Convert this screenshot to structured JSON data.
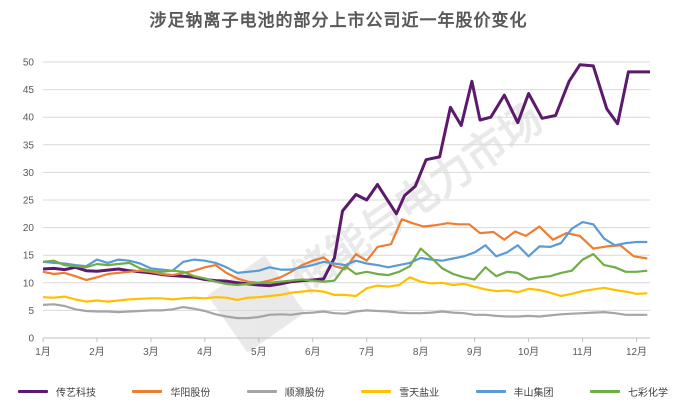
{
  "title": "涉足钠离子电池的部分上市公司近一年股价变化",
  "watermark_text": "储能与电力市场",
  "chart_data": {
    "type": "line",
    "title": "涉足钠离子电池的部分上市公司近一年股价变化",
    "xlabel": "",
    "ylabel": "",
    "ylim": [
      0,
      50
    ],
    "yticks": [
      0,
      5,
      10,
      15,
      20,
      25,
      30,
      35,
      40,
      45,
      50
    ],
    "x_tick_labels": [
      "1月",
      "2月",
      "3月",
      "4月",
      "5月",
      "6月",
      "7月",
      "8月",
      "9月",
      "10月",
      "11月",
      "12月"
    ],
    "x_range": [
      1,
      12.25
    ],
    "grid": true,
    "legend_position": "bottom",
    "series": [
      {
        "name": "传艺科技",
        "color": "#5b1a6b",
        "x": [
          1,
          1.2,
          1.4,
          1.6,
          1.8,
          2,
          2.2,
          2.4,
          2.6,
          2.8,
          3,
          3.2,
          3.4,
          3.6,
          3.8,
          4,
          4.2,
          4.4,
          4.6,
          4.8,
          5,
          5.2,
          5.4,
          5.6,
          5.8,
          6,
          6.2,
          6.4,
          6.55,
          6.8,
          7,
          7.2,
          7.35,
          7.55,
          7.7,
          7.9,
          8.1,
          8.35,
          8.55,
          8.75,
          8.95,
          9.1,
          9.3,
          9.55,
          9.8,
          10,
          10.25,
          10.5,
          10.75,
          10.95,
          11.2,
          11.45,
          11.65,
          11.85,
          12.05,
          12.25
        ],
        "y": [
          12.5,
          12.6,
          12.4,
          12.8,
          12.2,
          12.1,
          12.3,
          12.5,
          12.2,
          12.0,
          11.8,
          11.5,
          11.3,
          11.2,
          11.0,
          10.6,
          10.4,
          10.3,
          10.0,
          9.8,
          9.6,
          9.5,
          9.8,
          10.2,
          10.4,
          10.5,
          10.7,
          14.5,
          23.0,
          26.0,
          25.0,
          27.8,
          25.5,
          22.5,
          25.8,
          27.5,
          32.3,
          32.8,
          41.8,
          38.5,
          46.5,
          39.5,
          40.0,
          44.0,
          39.0,
          44.3,
          39.8,
          40.3,
          46.5,
          49.5,
          49.3,
          41.5,
          38.8,
          48.2,
          48.2,
          48.2
        ]
      },
      {
        "name": "华阳股份",
        "color": "#ed7d31",
        "x": [
          1,
          1.2,
          1.4,
          1.6,
          1.8,
          2,
          2.2,
          2.4,
          2.6,
          2.8,
          3,
          3.2,
          3.4,
          3.6,
          3.8,
          4,
          4.2,
          4.4,
          4.6,
          4.8,
          5,
          5.2,
          5.4,
          5.6,
          5.8,
          6,
          6.2,
          6.4,
          6.6,
          6.8,
          7,
          7.2,
          7.45,
          7.65,
          7.85,
          8.05,
          8.25,
          8.5,
          8.7,
          8.9,
          9.1,
          9.35,
          9.55,
          9.75,
          9.95,
          10.2,
          10.45,
          10.7,
          10.95,
          11.2,
          11.45,
          11.7,
          11.95,
          12.2
        ],
        "y": [
          12.0,
          11.6,
          11.8,
          11.2,
          10.5,
          11.0,
          11.6,
          11.8,
          12.0,
          12.2,
          12.0,
          11.6,
          11.4,
          11.8,
          12.2,
          12.8,
          13.2,
          11.8,
          10.8,
          10.2,
          10.0,
          10.4,
          11.0,
          12.0,
          13.2,
          14.0,
          14.6,
          13.0,
          12.5,
          15.2,
          14.0,
          16.5,
          17.0,
          21.5,
          20.8,
          20.2,
          20.4,
          20.8,
          20.6,
          20.6,
          19.0,
          19.2,
          17.8,
          19.3,
          18.5,
          20.2,
          17.8,
          19.0,
          18.5,
          16.2,
          16.6,
          16.8,
          14.8,
          14.4
        ]
      },
      {
        "name": "顺灏股份",
        "color": "#a5a5a5",
        "x": [
          1,
          1.2,
          1.4,
          1.6,
          1.8,
          2,
          2.2,
          2.4,
          2.6,
          2.8,
          3,
          3.2,
          3.4,
          3.6,
          3.8,
          4,
          4.2,
          4.4,
          4.6,
          4.8,
          5,
          5.2,
          5.4,
          5.6,
          5.8,
          6,
          6.2,
          6.4,
          6.6,
          6.8,
          7,
          7.2,
          7.4,
          7.6,
          7.8,
          8,
          8.2,
          8.4,
          8.6,
          8.8,
          9,
          9.2,
          9.4,
          9.6,
          9.8,
          10,
          10.2,
          10.4,
          10.6,
          10.8,
          11,
          11.2,
          11.4,
          11.6,
          11.8,
          12,
          12.2
        ],
        "y": [
          6.0,
          6.1,
          5.8,
          5.2,
          4.9,
          4.8,
          4.8,
          4.7,
          4.8,
          4.9,
          5.0,
          5.0,
          5.2,
          5.6,
          5.3,
          4.9,
          4.3,
          3.9,
          3.6,
          3.6,
          3.8,
          4.2,
          4.3,
          4.2,
          4.5,
          4.6,
          4.8,
          4.5,
          4.4,
          4.8,
          5.0,
          4.9,
          4.8,
          4.6,
          4.5,
          4.5,
          4.6,
          4.8,
          4.6,
          4.5,
          4.2,
          4.2,
          4.0,
          3.9,
          3.9,
          4.0,
          3.9,
          4.1,
          4.3,
          4.4,
          4.5,
          4.6,
          4.7,
          4.5,
          4.2,
          4.2,
          4.2
        ]
      },
      {
        "name": "雪天盐业",
        "color": "#ffc000",
        "x": [
          1,
          1.2,
          1.4,
          1.6,
          1.8,
          2,
          2.2,
          2.4,
          2.6,
          2.8,
          3,
          3.2,
          3.4,
          3.6,
          3.8,
          4,
          4.2,
          4.4,
          4.6,
          4.8,
          5,
          5.2,
          5.4,
          5.6,
          5.8,
          6,
          6.2,
          6.4,
          6.6,
          6.8,
          7,
          7.2,
          7.4,
          7.6,
          7.8,
          8,
          8.2,
          8.4,
          8.6,
          8.8,
          9,
          9.2,
          9.4,
          9.6,
          9.8,
          10,
          10.2,
          10.4,
          10.6,
          10.8,
          11,
          11.2,
          11.4,
          11.6,
          11.8,
          12,
          12.2
        ],
        "y": [
          7.4,
          7.3,
          7.5,
          7.0,
          6.6,
          6.8,
          6.6,
          6.8,
          7.0,
          7.1,
          7.2,
          7.2,
          7.0,
          7.2,
          7.3,
          7.2,
          7.4,
          7.3,
          6.9,
          7.3,
          7.4,
          7.6,
          7.8,
          8.2,
          8.4,
          8.6,
          8.4,
          7.8,
          7.8,
          7.6,
          9.0,
          9.5,
          9.3,
          9.6,
          11.0,
          10.2,
          9.9,
          10.0,
          9.6,
          9.8,
          9.3,
          8.8,
          8.5,
          8.6,
          8.3,
          8.9,
          8.7,
          8.2,
          7.6,
          8.0,
          8.5,
          8.8,
          9.1,
          8.7,
          8.4,
          8.0,
          8.1
        ]
      },
      {
        "name": "丰山集团",
        "color": "#5b9bd5",
        "x": [
          1,
          1.2,
          1.4,
          1.6,
          1.8,
          2,
          2.2,
          2.4,
          2.6,
          2.8,
          3,
          3.2,
          3.4,
          3.6,
          3.8,
          4,
          4.2,
          4.4,
          4.6,
          4.8,
          5,
          5.2,
          5.4,
          5.6,
          5.8,
          6,
          6.2,
          6.4,
          6.6,
          6.8,
          7,
          7.2,
          7.4,
          7.6,
          7.8,
          8,
          8.2,
          8.4,
          8.6,
          8.8,
          9,
          9.2,
          9.4,
          9.6,
          9.8,
          10,
          10.2,
          10.4,
          10.6,
          10.8,
          11,
          11.2,
          11.4,
          11.6,
          11.8,
          12,
          12.2
        ],
        "y": [
          13.8,
          13.6,
          13.5,
          13.2,
          13.0,
          14.2,
          13.6,
          14.2,
          14.0,
          13.5,
          12.6,
          12.4,
          12.2,
          13.8,
          14.2,
          14.0,
          13.6,
          12.8,
          11.8,
          12.0,
          12.2,
          12.8,
          12.4,
          12.4,
          12.8,
          13.2,
          13.8,
          13.5,
          13.2,
          14.0,
          13.5,
          13.2,
          12.8,
          13.2,
          13.6,
          14.5,
          14.2,
          14.0,
          14.4,
          14.8,
          15.5,
          16.8,
          14.8,
          15.5,
          16.8,
          14.8,
          16.6,
          16.5,
          17.2,
          19.8,
          21.0,
          20.6,
          18.0,
          16.8,
          17.2,
          17.4,
          17.4
        ]
      },
      {
        "name": "七彩化学",
        "color": "#70ad47",
        "x": [
          1,
          1.2,
          1.4,
          1.6,
          1.8,
          2,
          2.2,
          2.4,
          2.6,
          2.8,
          3,
          3.2,
          3.4,
          3.6,
          3.8,
          4,
          4.2,
          4.4,
          4.6,
          4.8,
          5,
          5.2,
          5.4,
          5.6,
          5.8,
          6,
          6.2,
          6.4,
          6.6,
          6.8,
          7,
          7.2,
          7.4,
          7.6,
          7.8,
          8,
          8.2,
          8.4,
          8.6,
          8.8,
          9,
          9.2,
          9.4,
          9.6,
          9.8,
          10,
          10.2,
          10.4,
          10.6,
          10.8,
          11,
          11.2,
          11.4,
          11.6,
          11.8,
          12,
          12.2
        ],
        "y": [
          13.8,
          14.0,
          13.2,
          13.0,
          12.8,
          13.4,
          13.2,
          13.4,
          13.6,
          12.6,
          12.2,
          12.0,
          12.2,
          12.0,
          11.2,
          10.8,
          10.2,
          9.8,
          9.6,
          9.8,
          10.0,
          10.0,
          10.2,
          10.4,
          10.6,
          10.4,
          10.2,
          10.4,
          13.0,
          11.6,
          12.0,
          11.6,
          11.4,
          12.0,
          13.0,
          16.2,
          14.5,
          12.6,
          11.6,
          11.0,
          10.6,
          12.8,
          11.2,
          12.0,
          11.8,
          10.6,
          11.0,
          11.2,
          11.8,
          12.2,
          14.2,
          15.2,
          13.2,
          12.8,
          12.0,
          12.0,
          12.2
        ]
      }
    ]
  }
}
